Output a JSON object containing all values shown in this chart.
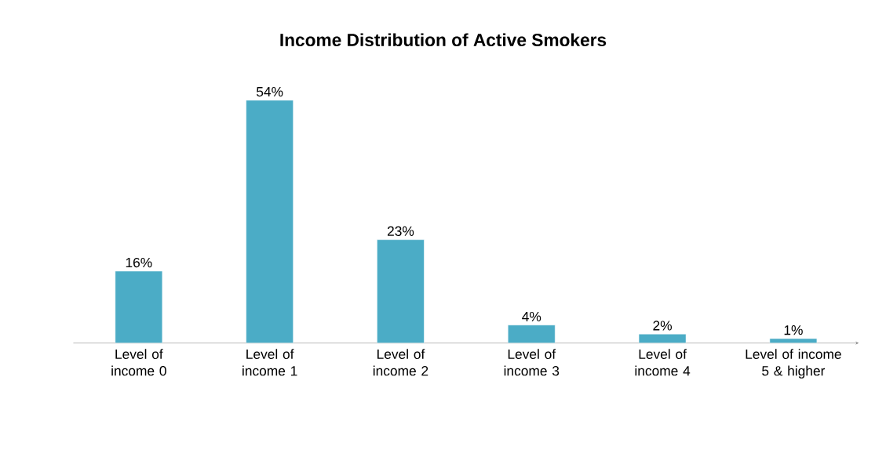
{
  "chart_data": {
    "type": "bar",
    "title": "Income Distribution of Active Smokers",
    "categories": [
      "Level of income 0",
      "Level of income 1",
      "Level of income 2",
      "Level of income 3",
      "Level of income 4",
      "Level of income 5 & higher"
    ],
    "values": [
      16,
      54,
      23,
      4,
      2,
      1
    ],
    "value_labels": [
      "16%",
      "54%",
      "23%",
      "4%",
      "2%",
      "1%"
    ],
    "color": "#4bacc6"
  }
}
